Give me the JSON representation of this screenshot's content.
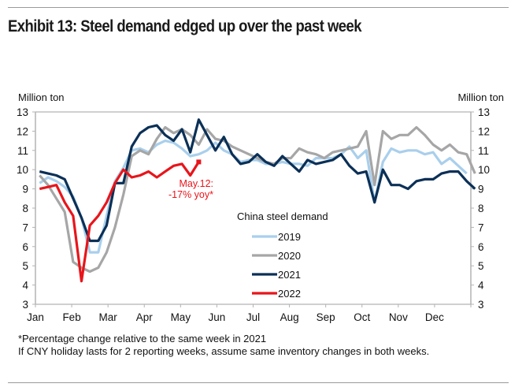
{
  "title": "Exhibit 13: Steel demand edged up over the past week",
  "footnotes": [
    "*Percentage change relative to the same week in 2021",
    "If CNY holiday lasts for 2 reporting weeks, assume same inventory changes in both weeks."
  ],
  "chart_data": {
    "type": "line",
    "title": "Exhibit 13: Steel demand edged up over the past week",
    "xlabel": "",
    "ylabel": "Million ton",
    "ylabel_right": "Million ton",
    "ylim": [
      3,
      13
    ],
    "yticks": [
      3,
      4,
      5,
      6,
      7,
      8,
      9,
      10,
      11,
      12,
      13
    ],
    "x_categories": [
      "Jan",
      "Feb",
      "Mar",
      "Apr",
      "May",
      "Jun",
      "Jul",
      "Aug",
      "Sep",
      "Oct",
      "Nov",
      "Dec"
    ],
    "x_unit": "week of year (1-52)",
    "grid": false,
    "legend_title": "China steel demand",
    "legend_position": "center",
    "annotation": {
      "text_line1": "May.12:",
      "text_line2": "-17% yoy*",
      "series": "2022",
      "week": 19
    },
    "series": [
      {
        "name": "2019",
        "color": "#a9cfec",
        "values": [
          9.3,
          9.6,
          9.4,
          9.1,
          8.6,
          7.5,
          5.7,
          5.7,
          7.6,
          9.4,
          10.1,
          11.0,
          11.1,
          10.9,
          11.3,
          11.5,
          11.4,
          11.1,
          10.7,
          10.8,
          11.0,
          11.4,
          11.0,
          10.8,
          10.4,
          10.5,
          10.5,
          10.3,
          10.3,
          10.4,
          10.3,
          10.3,
          10.2,
          10.6,
          10.6,
          10.6,
          10.8,
          11.2,
          10.6,
          11.0,
          8.3,
          10.4,
          11.1,
          10.9,
          11.0,
          11.0,
          10.8,
          10.9,
          10.3,
          10.6,
          10.2,
          9.8
        ]
      },
      {
        "name": "2020",
        "color": "#a6a6a6",
        "values": [
          9.7,
          9.2,
          8.5,
          7.8,
          5.2,
          4.9,
          4.7,
          4.9,
          5.7,
          7.0,
          8.7,
          10.7,
          11.0,
          10.8,
          11.6,
          12.2,
          11.9,
          12.1,
          11.8,
          11.3,
          12.1,
          11.6,
          11.5,
          11.2,
          11.0,
          10.8,
          10.6,
          10.4,
          10.3,
          10.6,
          10.6,
          11.1,
          10.9,
          10.8,
          10.6,
          10.9,
          11.0,
          11.1,
          11.2,
          12.0,
          9.2,
          12.0,
          11.6,
          11.8,
          11.8,
          12.2,
          11.8,
          11.3,
          11.0,
          11.3,
          10.9,
          10.8,
          9.8
        ]
      },
      {
        "name": "2021",
        "color": "#0b3057",
        "values": [
          9.9,
          9.8,
          9.7,
          9.5,
          8.5,
          7.5,
          6.3,
          6.3,
          7.1,
          9.3,
          9.3,
          11.2,
          11.9,
          12.2,
          12.3,
          11.8,
          11.5,
          12.1,
          10.9,
          12.6,
          11.8,
          11.0,
          11.7,
          10.8,
          10.3,
          10.4,
          10.8,
          10.4,
          10.2,
          10.7,
          10.3,
          9.9,
          10.5,
          10.3,
          10.4,
          10.5,
          10.8,
          10.2,
          9.8,
          9.9,
          8.3,
          10.0,
          9.2,
          9.2,
          9.0,
          9.4,
          9.5,
          9.5,
          9.8,
          9.9,
          9.9,
          9.4,
          9.0
        ]
      },
      {
        "name": "2022",
        "color": "#e8151b",
        "values": [
          9.0,
          9.1,
          9.2,
          8.3,
          7.6,
          4.2,
          7.1,
          7.6,
          8.3,
          9.3,
          10.0,
          9.6,
          9.7,
          9.9,
          9.6,
          9.9,
          10.2,
          10.3,
          9.7,
          10.4
        ]
      }
    ]
  }
}
